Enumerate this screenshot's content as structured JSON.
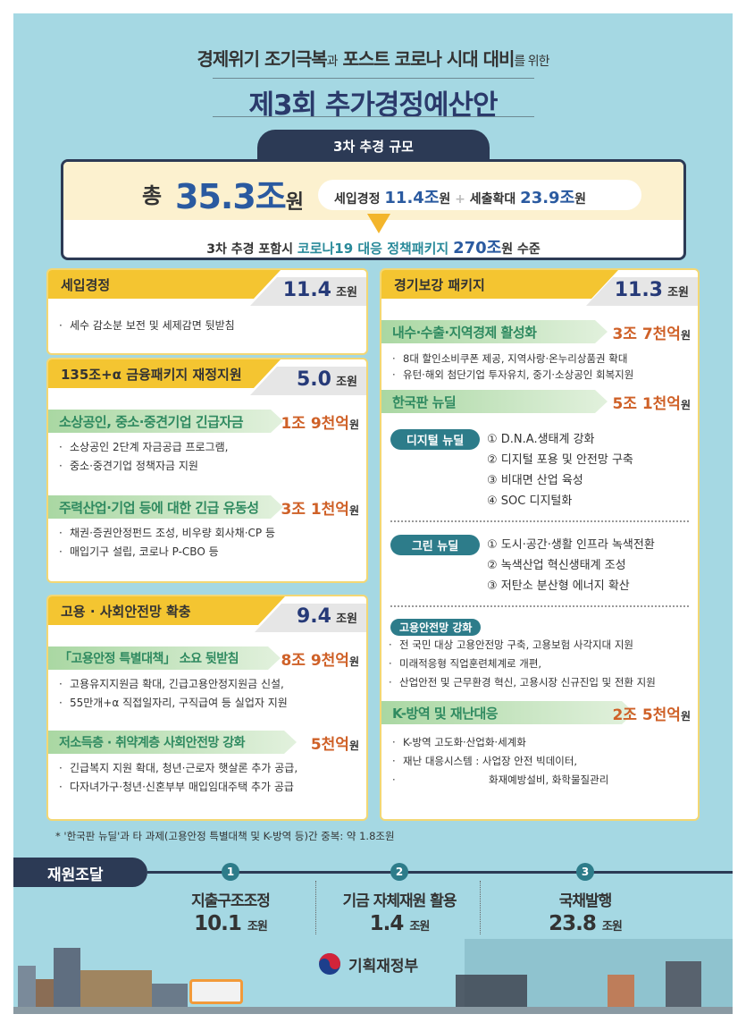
{
  "header": {
    "line1_a": "경제위기 조기극복",
    "line1_b": "과",
    "line1_c": " 포스트 코로나 시대 대비",
    "line1_d": "를 위한",
    "title": "제3회 추가경정예산안"
  },
  "scale": {
    "tab": "3차 추경 규모",
    "total_label": "총",
    "total_value": "35.3조",
    "total_unit": "원",
    "rev_label": "세입경정",
    "rev_value": "11.4조",
    "rev_unit": "원",
    "plus": "+",
    "exp_label": "세출확대",
    "exp_value": "23.9조",
    "exp_unit": "원",
    "pkg_prefix": "3차 추경 포함시",
    "pkg_name": "코로나19 대응 정책패키지",
    "pkg_value": "270조",
    "pkg_suffix": "원 수준"
  },
  "left": [
    {
      "title": "세입경정",
      "value": "11.4",
      "unit": "조원",
      "bullets": [
        "세수 감소분 보전 및 세제감면 뒷받침"
      ]
    },
    {
      "title": "135조+α 금융패키지 재정지원",
      "value": "5.0",
      "unit": "조원",
      "subs": [
        {
          "title": "소상공인, 중소·중견기업 긴급자금",
          "amount": "1조 9천억",
          "unit": "원",
          "lines": [
            "소상공인 2단계 자금공급 프로그램,",
            "중소·중견기업 정책자금 지원"
          ]
        },
        {
          "title": "주력산업·기업 등에 대한 긴급 유동성",
          "amount": "3조 1천억",
          "unit": "원",
          "lines": [
            "채권·증권안정펀드 조성, 비우량 회사채·CP 등",
            "매입기구 설립, 코로나 P-CBO 등"
          ]
        }
      ]
    },
    {
      "title": "고용 · 사회안전망 확충",
      "value": "9.4",
      "unit": "조원",
      "subs": [
        {
          "title": "「고용안정 특별대책」 소요 뒷받침",
          "amount": "8조 9천억",
          "unit": "원",
          "lines": [
            "고용유지지원금 확대, 긴급고용안정지원금 신설,",
            "55만개+α 직접일자리, 구직급여 등 실업자 지원"
          ]
        },
        {
          "title": "저소득층 · 취약계층 사회안전망 강화",
          "amount": "5천억",
          "unit": "원",
          "lines": [
            "긴급복지 지원 확대, 청년·근로자 햇살론 추가 공급,",
            "다자녀가구·청년·신혼부부 매입임대주택 추가 공급"
          ]
        }
      ]
    }
  ],
  "right": {
    "title": "경기보강 패키지",
    "value": "11.3",
    "unit": "조원",
    "sub1": {
      "title": "내수·수출·지역경제 활성화",
      "amount": "3조 7천억",
      "unit": "원",
      "lines": [
        "8대 할인소비쿠폰 제공, 지역사랑·온누리상품권 확대",
        "유턴·해외 첨단기업 투자유치, 중기·소상공인 회복지원"
      ]
    },
    "sub2": {
      "title": "한국판 뉴딜",
      "amount": "5조 1천억",
      "unit": "원",
      "digital": {
        "label": "디지털 뉴딜",
        "items": [
          "① D.N.A.생태계 강화",
          "② 디지털 포용 및 안전망 구축",
          "③ 비대면 산업 육성",
          "④ SOC 디지털화"
        ]
      },
      "green": {
        "label": "그린 뉴딜",
        "items": [
          "① 도시·공간·생활 인프라 녹색전환",
          "② 녹색산업 혁신생태계 조성",
          "③ 저탄소 분산형 에너지 확산"
        ]
      },
      "employment": {
        "label": "고용안전망 강화",
        "lines": [
          "전 국민 대상 고용안전망 구축, 고용보험 사각지대 지원",
          "미래적응형 직업훈련체계로 개편,",
          "산업안전 및 근무환경 혁신, 고용시장 신규진입 및 전환 지원"
        ]
      }
    },
    "sub3": {
      "title": "K-방역 및 재난대응",
      "amount": "2조 5천억",
      "unit": "원",
      "lines": [
        "K-방역 고도화·산업화·세계화",
        "재난 대응시스템 : 사업장 안전 빅데이터,",
        "화재예방설비, 화학물질관리"
      ]
    }
  },
  "footnote": "* '한국판 뉴딜'과 타 과제(고용안정 특별대책 및 K-방역 등)간 중복: 약 1.8조원",
  "funding": {
    "title": "재원조달",
    "items": [
      {
        "num": "1",
        "label": "지출구조조정",
        "value": "10.1",
        "unit": "조원"
      },
      {
        "num": "2",
        "label": "기금 자체재원 활용",
        "value": "1.4",
        "unit": "조원"
      },
      {
        "num": "3",
        "label": "국채발행",
        "value": "23.8",
        "unit": "조원"
      }
    ]
  },
  "logo": {
    "text": "기획재정부"
  },
  "colors": {
    "background": "#a5d8e3",
    "navy": "#2c3a55",
    "yellow": "#f4c531",
    "orange": "#cf6128",
    "teal": "#2d7c8a",
    "blue": "#2a5aa0"
  }
}
